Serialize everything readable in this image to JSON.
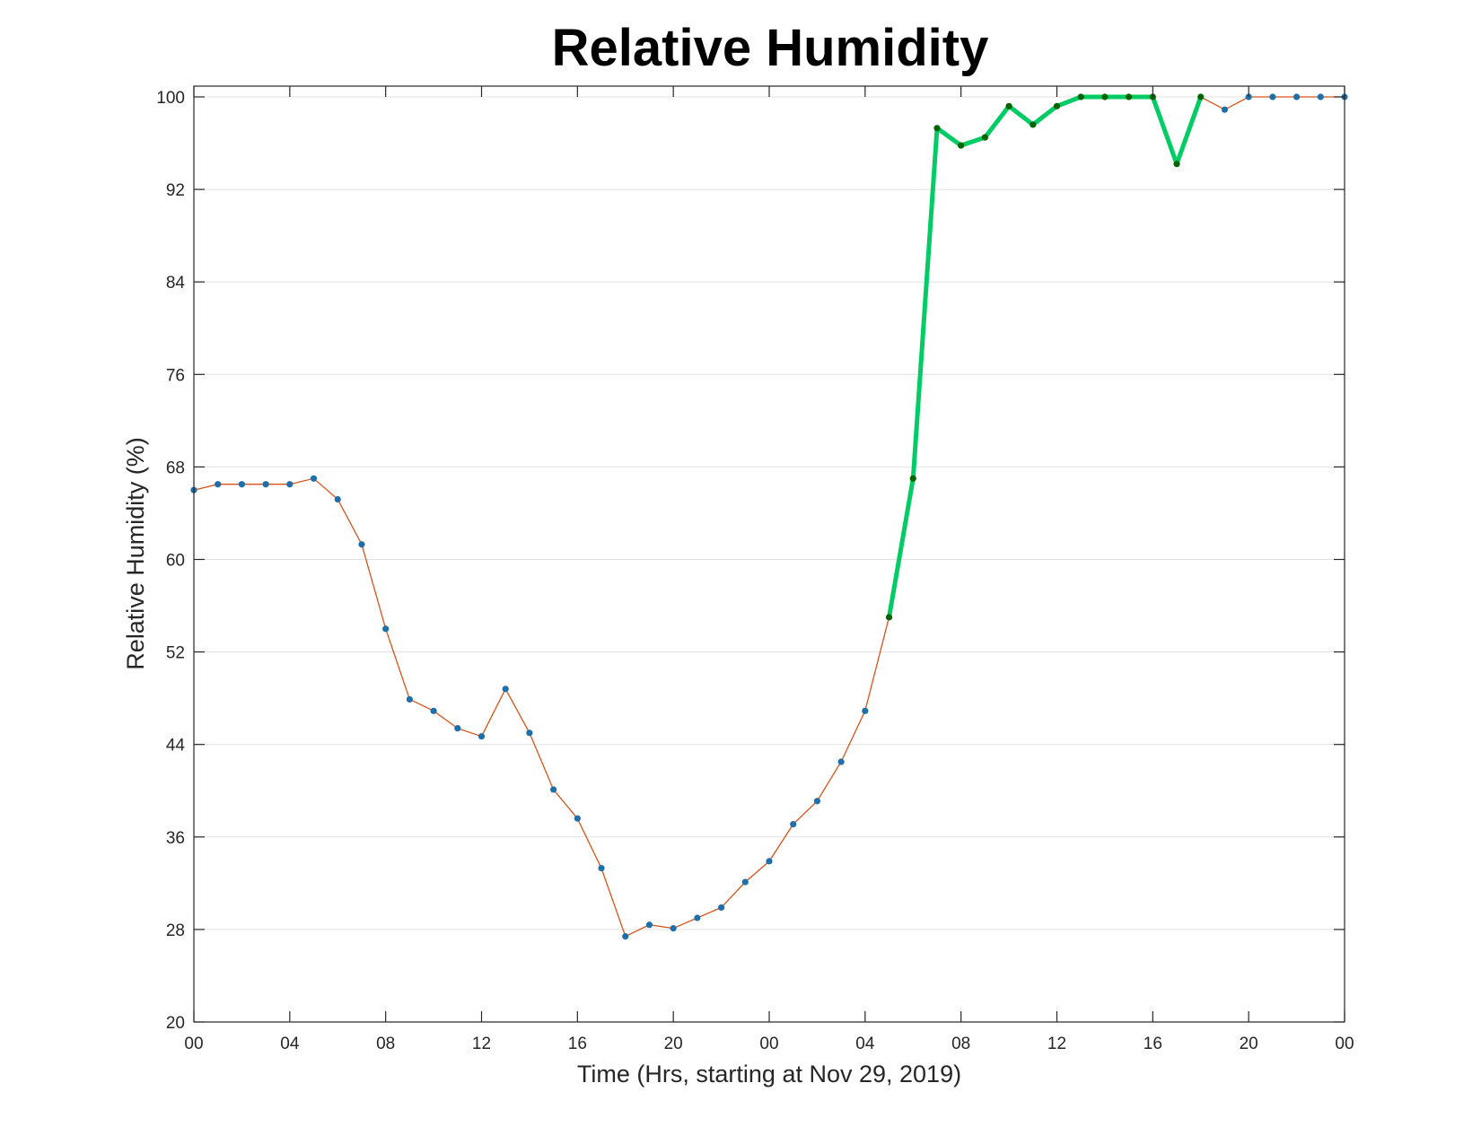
{
  "chart_data": {
    "type": "line",
    "title": "Relative Humidity",
    "xlabel": "Time (Hrs, starting at Nov 29, 2019)",
    "ylabel": "Relative Humidity (%)",
    "xlim": [
      0,
      48
    ],
    "ylim": [
      20,
      100
    ],
    "x_ticks": [
      0,
      4,
      8,
      12,
      16,
      20,
      24,
      28,
      32,
      36,
      40,
      44,
      48
    ],
    "x_tick_labels": [
      "00",
      "04",
      "08",
      "12",
      "16",
      "20",
      "00",
      "04",
      "08",
      "12",
      "16",
      "20",
      "00"
    ],
    "y_ticks": [
      20,
      28,
      36,
      44,
      52,
      60,
      68,
      76,
      84,
      92,
      100
    ],
    "y_tick_labels": [
      "20",
      "28",
      "36",
      "44",
      "52",
      "60",
      "68",
      "76",
      "84",
      "92",
      "100"
    ],
    "grid": "horizontal",
    "colors": {
      "line": "#d95319",
      "marker": "#1f6faa",
      "highlight_line": "#00cc66",
      "highlight_marker": "#006400"
    },
    "series": [
      {
        "x": [
          0,
          1,
          2,
          3,
          4,
          5,
          6,
          7,
          8,
          9,
          10,
          11,
          12,
          13,
          14,
          15,
          16,
          17,
          18,
          19,
          20,
          21,
          22,
          23,
          24,
          25,
          26,
          27,
          28,
          29,
          30,
          31,
          32,
          33,
          34,
          35,
          36,
          37,
          38,
          39,
          40,
          41,
          42,
          43,
          44,
          45,
          46,
          47,
          48
        ],
        "values": [
          66,
          66.5,
          66.5,
          66.5,
          66.5,
          67,
          65.2,
          61.3,
          54,
          47.9,
          46.9,
          45.4,
          44.7,
          48.8,
          45,
          40.1,
          37.6,
          33.3,
          27.4,
          28.4,
          28.1,
          29,
          29.9,
          32.1,
          33.9,
          37.1,
          39.1,
          42.5,
          46.9,
          55,
          67,
          97.3,
          95.8,
          96.5,
          99.2,
          97.6,
          99.2,
          100,
          100,
          100,
          100,
          94.2,
          100,
          98.9,
          100,
          100,
          100,
          100,
          100
        ]
      }
    ],
    "highlight_range": [
      29,
      42
    ]
  }
}
